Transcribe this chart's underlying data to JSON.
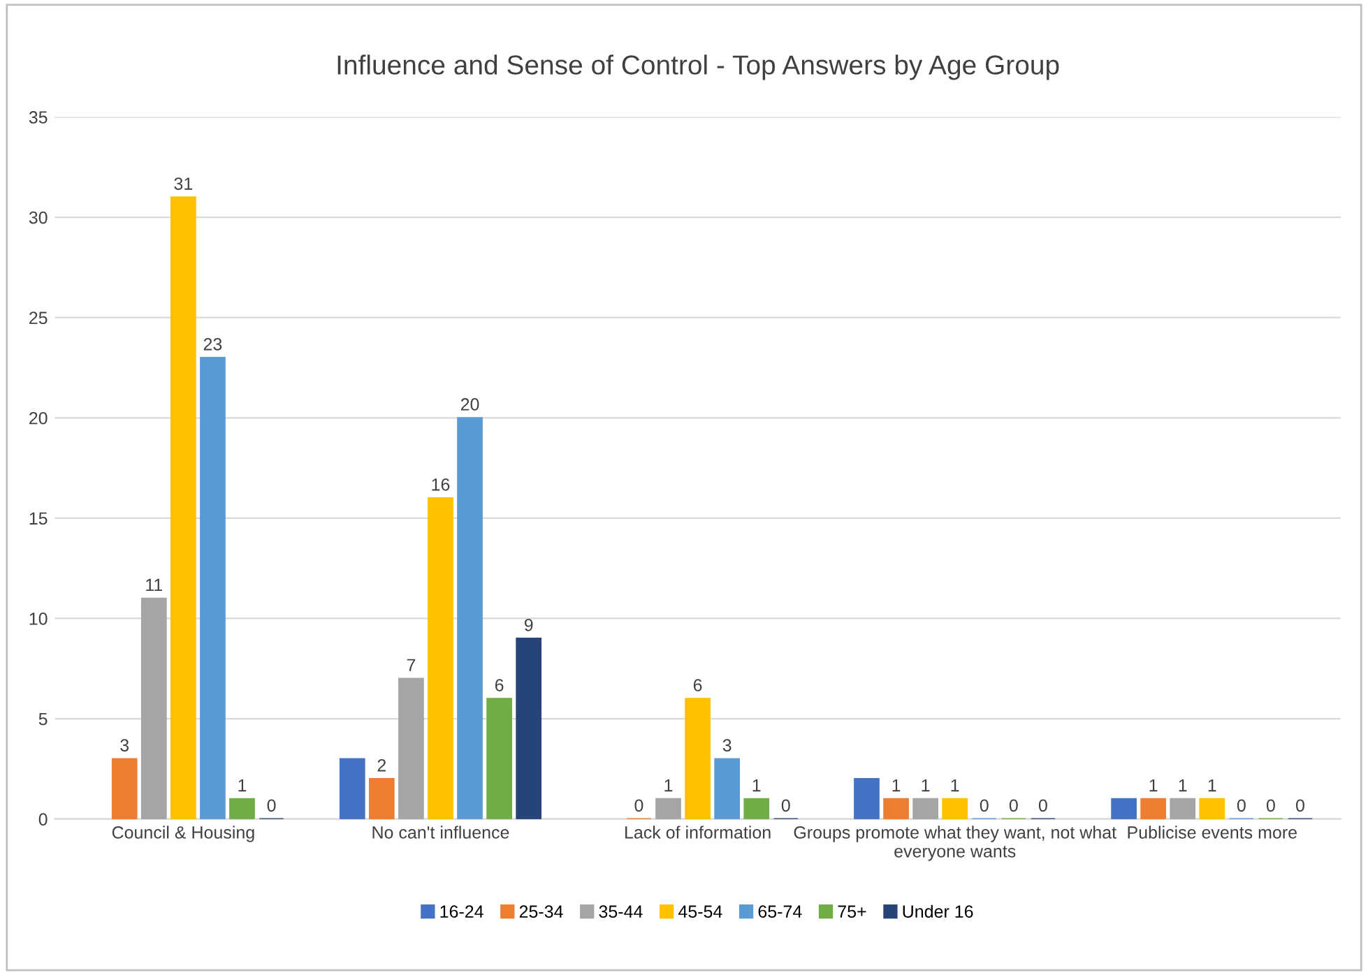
{
  "chart_data": {
    "type": "bar",
    "title": "Influence and Sense of Control - Top Answers by Age Group",
    "categories": [
      "Council & Housing",
      "No can't influence",
      "Lack of information",
      "Groups promote what they want, not what\neveryone wants",
      "Publicise events more"
    ],
    "series": [
      {
        "name": "16-24",
        "color": "#4472c4",
        "values": [
          null,
          3,
          null,
          2,
          1
        ],
        "value_labels": [
          null,
          null,
          null,
          null,
          null
        ]
      },
      {
        "name": "25-34",
        "color": "#ed7d31",
        "values": [
          3,
          2,
          0,
          1,
          1
        ]
      },
      {
        "name": "35-44",
        "color": "#a5a5a5",
        "values": [
          11,
          7,
          1,
          1,
          1
        ]
      },
      {
        "name": "45-54",
        "color": "#ffc000",
        "values": [
          31,
          16,
          6,
          1,
          1
        ]
      },
      {
        "name": "65-74",
        "color": "#5b9bd5",
        "values": [
          23,
          20,
          3,
          0,
          0
        ]
      },
      {
        "name": "75+",
        "color": "#70ad47",
        "values": [
          1,
          6,
          1,
          0,
          0
        ]
      },
      {
        "name": "Under 16",
        "color": "#264478",
        "values": [
          0,
          9,
          0,
          0,
          0
        ]
      }
    ],
    "ylim": [
      0,
      35
    ],
    "yticks": [
      0,
      5,
      10,
      15,
      20,
      25,
      30,
      35
    ],
    "grid": "y",
    "legend": "bottom",
    "data_labels": true
  }
}
